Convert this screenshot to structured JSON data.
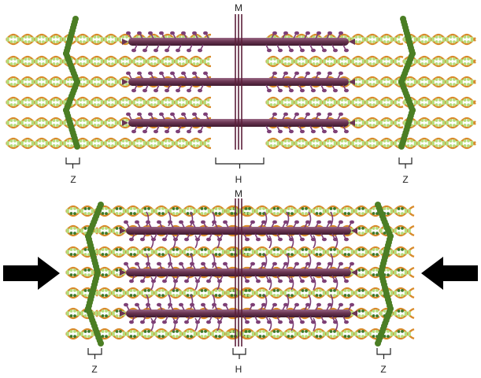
{
  "labels": {
    "m": "M",
    "z": "Z",
    "h": "H"
  },
  "panels": [
    {
      "state": "relaxed"
    },
    {
      "state": "contracted"
    }
  ],
  "colors": {
    "actin_outer": "#d98a2a",
    "actin_bead": "#b5dd7c",
    "actin_bead_dark": "#3c7a2a",
    "myosin_rod": "#6a3552",
    "myosin_head": "#7d3f76",
    "z_disc": "#4b7e24",
    "m_line": "#5b1f3a",
    "arrow": "#000000"
  },
  "icons": [
    "arrow-right-icon",
    "arrow-left-icon"
  ]
}
